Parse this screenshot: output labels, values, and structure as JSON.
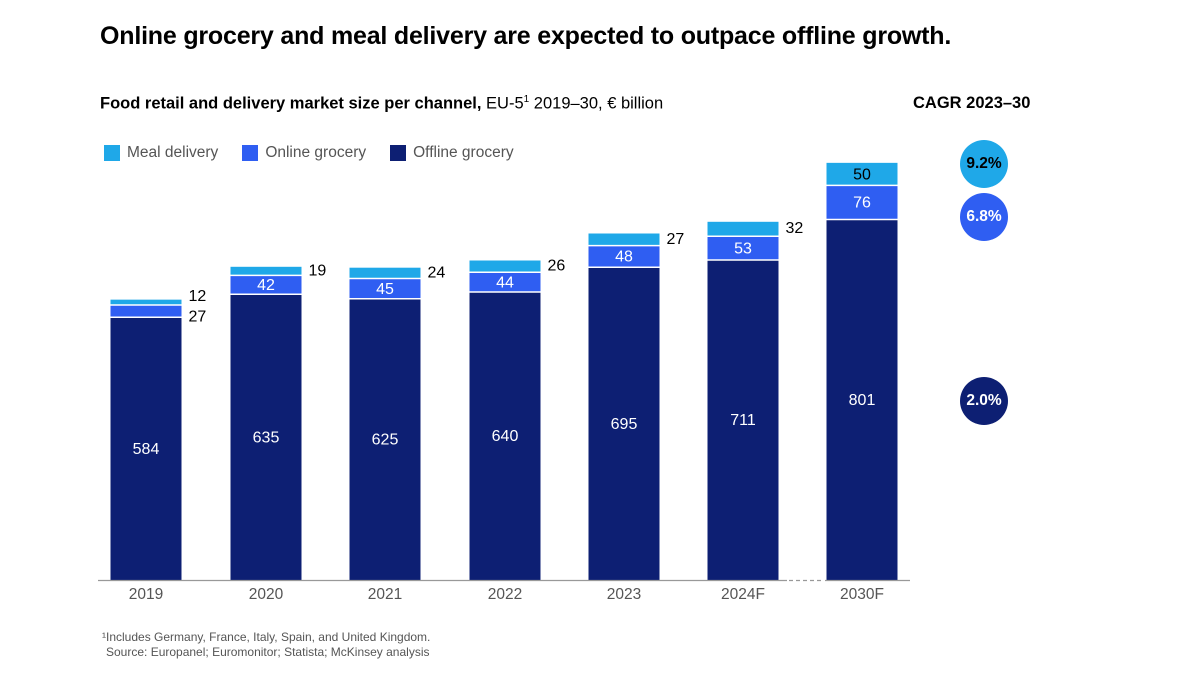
{
  "title": "Online grocery and meal delivery are expected to outpace offline growth.",
  "subtitle_bold": "Food retail and delivery market size per channel,",
  "subtitle_rest": " EU-5",
  "subtitle_sup": "1",
  "subtitle_tail": " 2019–30, € billion",
  "cagr_title": "CAGR 2023–30",
  "colors": {
    "meal_delivery": "#1fa8e8",
    "online_grocery": "#2f5ef2",
    "offline_grocery": "#0d1f73",
    "axis": "#999999"
  },
  "chart_data": {
    "type": "bar",
    "stacked": true,
    "categories": [
      "2019",
      "2020",
      "2021",
      "2022",
      "2023",
      "2024F",
      "2030F"
    ],
    "series": [
      {
        "name": "Offline grocery",
        "values": [
          584,
          635,
          625,
          640,
          695,
          711,
          801
        ]
      },
      {
        "name": "Online grocery",
        "values": [
          27,
          42,
          45,
          44,
          48,
          53,
          76
        ]
      },
      {
        "name": "Meal delivery",
        "values": [
          12,
          19,
          24,
          26,
          27,
          32,
          50
        ]
      }
    ],
    "legend": [
      "Meal delivery",
      "Online grocery",
      "Offline grocery"
    ],
    "legend_position": "top-left",
    "axis_break_between": [
      "2024F",
      "2030F"
    ],
    "grid": false
  },
  "cagr": [
    {
      "series": "Meal delivery",
      "value": "9.2%",
      "color": "#1fa8e8"
    },
    {
      "series": "Online grocery",
      "value": "6.8%",
      "color": "#2f5ef2"
    },
    {
      "series": "Offline grocery",
      "value": "2.0%",
      "color": "#0d1f73"
    }
  ],
  "footnote_line1": "¹Includes Germany, France, Italy, Spain, and United Kingdom.",
  "footnote_line2": "Source: Europanel; Euromonitor; Statista; McKinsey analysis"
}
